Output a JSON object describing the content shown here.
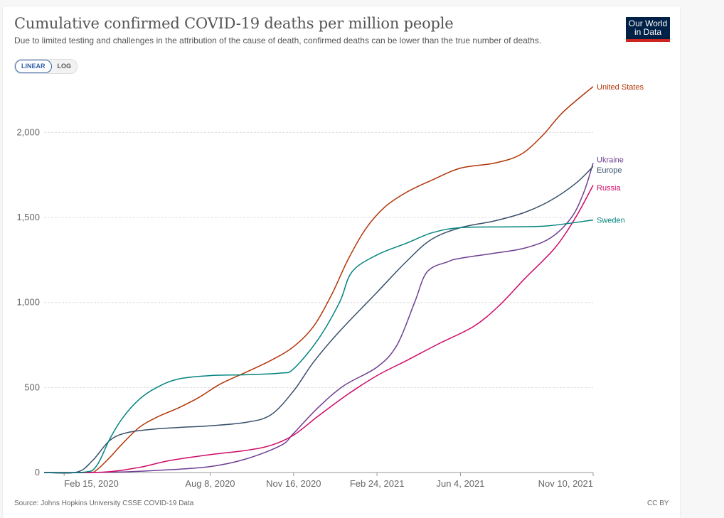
{
  "header": {
    "title": "Cumulative confirmed COVID-19 deaths per million people",
    "subtitle": "Due to limited testing and challenges in the attribution of the cause of death, confirmed deaths can be lower than the true number of deaths.",
    "logo_line1": "Our World",
    "logo_line2": "in Data"
  },
  "scale_toggle": {
    "options": [
      "LINEAR",
      "LOG"
    ],
    "selected": "LINEAR"
  },
  "footer": {
    "source": "Source: Johns Hopkins University CSSE COVID-19 Data",
    "license": "CC BY"
  },
  "chart_data": {
    "type": "line",
    "title": "Cumulative confirmed COVID-19 deaths per million people",
    "xlabel": "",
    "ylabel": "",
    "ylim": [
      0,
      2270
    ],
    "xlim": [
      "2020-01-22",
      "2021-11-10"
    ],
    "grid": true,
    "legend": "right-inline",
    "yticks": [
      0,
      500,
      1000,
      1500,
      2000
    ],
    "ytick_labels": [
      "0",
      "500",
      "1,000",
      "1,500",
      "2,000"
    ],
    "xticks": [
      "2020-02-15",
      "2020-08-08",
      "2020-11-16",
      "2021-02-24",
      "2021-06-04",
      "2021-11-10"
    ],
    "xtick_labels": [
      "Feb 15, 2020",
      "Aug 8, 2020",
      "Nov 16, 2020",
      "Feb 24, 2021",
      "Jun 4, 2021",
      "Nov 10, 2021"
    ],
    "series": [
      {
        "name": "United States",
        "color": "#b13507",
        "points": [
          [
            "2020-01-22",
            0
          ],
          [
            "2020-03-15",
            1
          ],
          [
            "2020-03-25",
            15
          ],
          [
            "2020-04-10",
            90
          ],
          [
            "2020-04-25",
            170
          ],
          [
            "2020-05-15",
            265
          ],
          [
            "2020-06-05",
            325
          ],
          [
            "2020-07-01",
            380
          ],
          [
            "2020-07-25",
            440
          ],
          [
            "2020-08-20",
            520
          ],
          [
            "2020-09-20",
            590
          ],
          [
            "2020-10-20",
            660
          ],
          [
            "2020-11-16",
            740
          ],
          [
            "2020-12-10",
            860
          ],
          [
            "2021-01-01",
            1050
          ],
          [
            "2021-01-20",
            1250
          ],
          [
            "2021-02-10",
            1430
          ],
          [
            "2021-03-05",
            1560
          ],
          [
            "2021-04-01",
            1650
          ],
          [
            "2021-05-01",
            1720
          ],
          [
            "2021-06-04",
            1790
          ],
          [
            "2021-07-15",
            1820
          ],
          [
            "2021-08-15",
            1870
          ],
          [
            "2021-09-10",
            1980
          ],
          [
            "2021-10-05",
            2120
          ],
          [
            "2021-11-10",
            2270
          ]
        ]
      },
      {
        "name": "Ukraine",
        "color": "#6d3e91",
        "points": [
          [
            "2020-01-22",
            0
          ],
          [
            "2020-04-15",
            2
          ],
          [
            "2020-06-15",
            15
          ],
          [
            "2020-08-08",
            35
          ],
          [
            "2020-09-20",
            80
          ],
          [
            "2020-11-01",
            160
          ],
          [
            "2020-11-16",
            230
          ],
          [
            "2020-12-15",
            380
          ],
          [
            "2021-01-15",
            510
          ],
          [
            "2021-02-24",
            620
          ],
          [
            "2021-03-20",
            750
          ],
          [
            "2021-04-10",
            1000
          ],
          [
            "2021-04-25",
            1180
          ],
          [
            "2021-05-20",
            1240
          ],
          [
            "2021-06-04",
            1260
          ],
          [
            "2021-07-15",
            1290
          ],
          [
            "2021-08-20",
            1320
          ],
          [
            "2021-09-20",
            1380
          ],
          [
            "2021-10-15",
            1500
          ],
          [
            "2021-10-30",
            1650
          ],
          [
            "2021-11-10",
            1820
          ]
        ]
      },
      {
        "name": "Europe",
        "color": "#38506b",
        "points": [
          [
            "2020-01-22",
            0
          ],
          [
            "2020-03-01",
            2
          ],
          [
            "2020-03-20",
            70
          ],
          [
            "2020-04-10",
            190
          ],
          [
            "2020-05-01",
            235
          ],
          [
            "2020-06-01",
            255
          ],
          [
            "2020-07-01",
            265
          ],
          [
            "2020-08-08",
            275
          ],
          [
            "2020-09-20",
            295
          ],
          [
            "2020-10-20",
            340
          ],
          [
            "2020-11-16",
            480
          ],
          [
            "2020-12-10",
            650
          ],
          [
            "2021-01-10",
            830
          ],
          [
            "2021-02-24",
            1060
          ],
          [
            "2021-03-31",
            1240
          ],
          [
            "2021-04-30",
            1370
          ],
          [
            "2021-06-04",
            1440
          ],
          [
            "2021-07-15",
            1480
          ],
          [
            "2021-08-20",
            1530
          ],
          [
            "2021-09-20",
            1600
          ],
          [
            "2021-10-20",
            1700
          ],
          [
            "2021-11-10",
            1800
          ]
        ]
      },
      {
        "name": "Russia",
        "color": "#cf0a66",
        "points": [
          [
            "2020-01-22",
            0
          ],
          [
            "2020-04-01",
            2
          ],
          [
            "2020-05-15",
            30
          ],
          [
            "2020-06-20",
            70
          ],
          [
            "2020-08-08",
            105
          ],
          [
            "2020-09-20",
            130
          ],
          [
            "2020-10-20",
            160
          ],
          [
            "2020-11-16",
            220
          ],
          [
            "2020-12-15",
            330
          ],
          [
            "2021-01-20",
            460
          ],
          [
            "2021-02-24",
            570
          ],
          [
            "2021-04-01",
            660
          ],
          [
            "2021-05-10",
            760
          ],
          [
            "2021-06-20",
            860
          ],
          [
            "2021-07-20",
            980
          ],
          [
            "2021-08-20",
            1140
          ],
          [
            "2021-09-25",
            1320
          ],
          [
            "2021-10-20",
            1500
          ],
          [
            "2021-11-10",
            1690
          ]
        ]
      },
      {
        "name": "Sweden",
        "color": "#00847e",
        "points": [
          [
            "2020-01-22",
            0
          ],
          [
            "2020-03-10",
            2
          ],
          [
            "2020-03-25",
            40
          ],
          [
            "2020-04-10",
            200
          ],
          [
            "2020-04-25",
            320
          ],
          [
            "2020-05-15",
            430
          ],
          [
            "2020-06-05",
            500
          ],
          [
            "2020-07-01",
            550
          ],
          [
            "2020-08-08",
            570
          ],
          [
            "2020-09-20",
            575
          ],
          [
            "2020-11-01",
            585
          ],
          [
            "2020-11-16",
            610
          ],
          [
            "2020-12-15",
            780
          ],
          [
            "2021-01-10",
            1000
          ],
          [
            "2021-01-25",
            1180
          ],
          [
            "2021-02-24",
            1280
          ],
          [
            "2021-04-01",
            1350
          ],
          [
            "2021-05-01",
            1410
          ],
          [
            "2021-06-04",
            1440
          ],
          [
            "2021-08-01",
            1445
          ],
          [
            "2021-09-15",
            1450
          ],
          [
            "2021-11-10",
            1485
          ]
        ]
      }
    ],
    "labels": [
      {
        "series": "United States",
        "text": "United States",
        "value": 2270
      },
      {
        "series": "Ukraine",
        "text": "Ukraine",
        "value": 1840
      },
      {
        "series": "Europe",
        "text": "Europe",
        "value": 1780
      },
      {
        "series": "Russia",
        "text": "Russia",
        "value": 1675
      },
      {
        "series": "Sweden",
        "text": "Sweden",
        "value": 1485
      }
    ]
  }
}
